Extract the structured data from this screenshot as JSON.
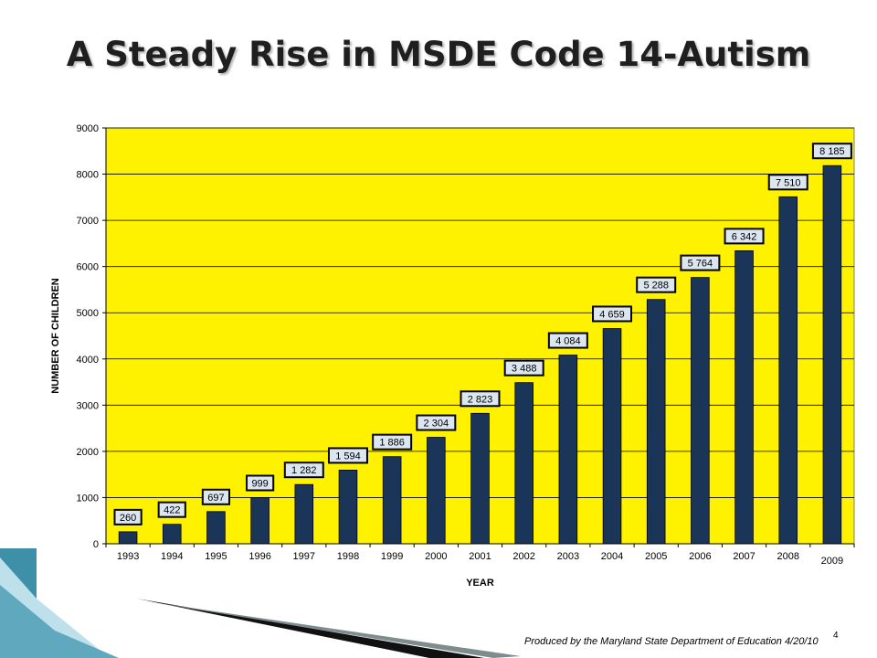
{
  "slide": {
    "title": "A Steady Rise in MSDE Code 14-Autism",
    "footer": "Produced by the Maryland State Department of Education 4/20/10",
    "page_number": "4"
  },
  "colors": {
    "plot_background": "#FFF200",
    "bar_fill": "#1B3558",
    "label_fill": "#DCE6F0",
    "deco_teal": "#3E8FA8",
    "deco_light": "#BDE0EA"
  },
  "chart_data": {
    "type": "bar",
    "title": "",
    "xlabel": "YEAR",
    "ylabel": "NUMBER OF CHILDREN",
    "ylim": [
      0,
      9000
    ],
    "yticks": [
      "0",
      "1000",
      "2000",
      "3000",
      "4000",
      "5000",
      "6000",
      "7000",
      "8000",
      "9000"
    ],
    "grid": true,
    "categories": [
      "1993",
      "1994",
      "1995",
      "1996",
      "1997",
      "1998",
      "1999",
      "2000",
      "2001",
      "2002",
      "2003",
      "2004",
      "2005",
      "2006",
      "2007",
      "2008",
      "2009"
    ],
    "values": [
      260,
      422,
      697,
      999,
      1282,
      1594,
      1886,
      2304,
      2823,
      3488,
      4084,
      4659,
      5288,
      5764,
      6342,
      7510,
      8185
    ],
    "data_labels": [
      "260",
      "422",
      "697",
      "999",
      "1 282",
      "1 594",
      "1 886",
      "2 304",
      "2 823",
      "3 488",
      "4 084",
      "4 659",
      "5 288",
      "5 764",
      "6 342",
      "7 510",
      "8 185"
    ]
  }
}
